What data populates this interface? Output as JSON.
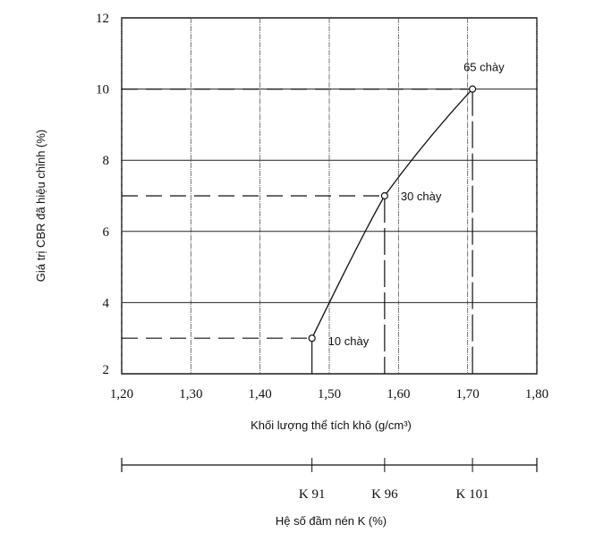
{
  "chart_data": {
    "type": "line",
    "title": "",
    "xlabel": "Khối lượng thể tích khô (g/cm³)",
    "ylabel": "Giá trị CBR đã hiệu chỉnh (%)",
    "xlim": [
      1.2,
      1.8
    ],
    "ylim": [
      2,
      12
    ],
    "grid": true,
    "x_ticks": [
      "1,20",
      "1,30",
      "1,40",
      "1,50",
      "1,60",
      "1,70",
      "1,80"
    ],
    "x_tick_values": [
      1.2,
      1.3,
      1.4,
      1.5,
      1.6,
      1.7,
      1.8
    ],
    "y_ticks": [
      "2",
      "4",
      "6",
      "8",
      "10",
      "12"
    ],
    "y_tick_values": [
      2,
      4,
      6,
      8,
      10,
      12
    ],
    "series": [
      {
        "name": "CBR",
        "points": [
          {
            "x": 1.475,
            "y": 3,
            "label": "10 chày"
          },
          {
            "x": 1.58,
            "y": 7,
            "label": "30 chày"
          },
          {
            "x": 1.707,
            "y": 10,
            "label": "65 chày"
          }
        ]
      }
    ],
    "secondary_axis": {
      "label": "Hệ số đầm nén K (%)",
      "ticks": [
        {
          "x": 1.475,
          "label": "K 91"
        },
        {
          "x": 1.58,
          "label": "K 96"
        },
        {
          "x": 1.707,
          "label": "K 101"
        }
      ]
    }
  }
}
